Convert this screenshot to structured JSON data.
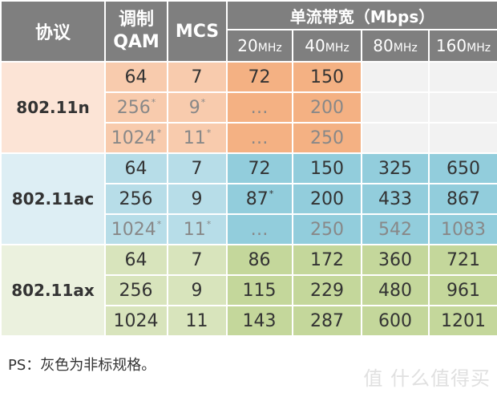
{
  "header": {
    "protocol": "协议",
    "qam_line1": "调制",
    "qam_line2": "QAM",
    "mcs": "MCS",
    "bandwidth": "单流带宽（Mbps）",
    "widths": [
      {
        "num": "20",
        "unit": "MHz"
      },
      {
        "num": "40",
        "unit": "MHz"
      },
      {
        "num": "80",
        "unit": "MHz"
      },
      {
        "num": "160",
        "unit": "MHz"
      }
    ]
  },
  "groups": [
    {
      "name": "802.11n",
      "rows": [
        {
          "qam": "64",
          "qam_star": "",
          "mcs": "7",
          "mcs_star": "",
          "gray": false,
          "vals": [
            "72",
            "150",
            "",
            ""
          ],
          "v20_star": ""
        },
        {
          "qam": "256",
          "qam_star": "*",
          "mcs": "9",
          "mcs_star": "*",
          "gray": true,
          "vals": [
            "…",
            "200",
            "",
            ""
          ],
          "v20_star": ""
        },
        {
          "qam": "1024",
          "qam_star": "*",
          "mcs": "11",
          "mcs_star": "*",
          "gray": true,
          "vals": [
            "…",
            "250",
            "",
            ""
          ],
          "v20_star": ""
        }
      ]
    },
    {
      "name": "802.11ac",
      "rows": [
        {
          "qam": "64",
          "qam_star": "",
          "mcs": "7",
          "mcs_star": "",
          "gray": false,
          "vals": [
            "72",
            "150",
            "325",
            "650"
          ],
          "v20_star": ""
        },
        {
          "qam": "256",
          "qam_star": "",
          "mcs": "9",
          "mcs_star": "",
          "gray": false,
          "vals": [
            "87",
            "200",
            "433",
            "867"
          ],
          "v20_star": "*"
        },
        {
          "qam": "1024",
          "qam_star": "*",
          "mcs": "11",
          "mcs_star": "*",
          "gray": true,
          "vals": [
            "…",
            "250",
            "542",
            "1083"
          ],
          "v20_star": ""
        }
      ]
    },
    {
      "name": "802.11ax",
      "rows": [
        {
          "qam": "64",
          "qam_star": "",
          "mcs": "7",
          "mcs_star": "",
          "gray": false,
          "vals": [
            "86",
            "172",
            "360",
            "721"
          ],
          "v20_star": ""
        },
        {
          "qam": "256",
          "qam_star": "",
          "mcs": "9",
          "mcs_star": "",
          "gray": false,
          "vals": [
            "115",
            "229",
            "480",
            "961"
          ],
          "v20_star": ""
        },
        {
          "qam": "1024",
          "qam_star": "",
          "mcs": "11",
          "mcs_star": "",
          "gray": false,
          "vals": [
            "143",
            "287",
            "600",
            "1201"
          ],
          "v20_star": ""
        }
      ]
    }
  ],
  "note": "PS：灰色为非标规格。",
  "watermark": "值 什么值得买",
  "colors": {
    "header_bg": "#7f7f7f",
    "n": [
      "#fce4d6",
      "#f8cbad",
      "#f4b183"
    ],
    "ac": [
      "#ddeef4",
      "#b7dde8",
      "#92cddc"
    ],
    "ax": [
      "#ebf1de",
      "#d8e4bc",
      "#c4d79b"
    ],
    "empty": "#f2f2f2",
    "gray_text": "#888888"
  }
}
